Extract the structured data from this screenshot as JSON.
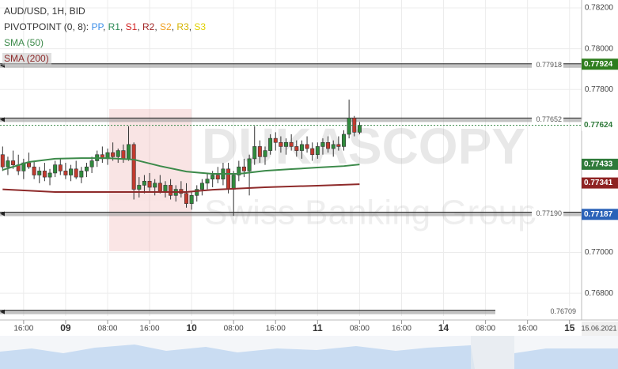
{
  "chart_data": {
    "type": "candlestick",
    "title": "AUD/USD, 1H, BID",
    "pivot_title": "PIVOTPOINT (0, 8):",
    "pivot_items": [
      {
        "name": "PP",
        "color": "#3b8ee8"
      },
      {
        "name": "R1",
        "color": "#2e8b57"
      },
      {
        "name": "S1",
        "color": "#d02020"
      },
      {
        "name": "R2",
        "color": "#a02525"
      },
      {
        "name": "S2",
        "color": "#f0a020"
      },
      {
        "name": "R3",
        "color": "#d4b400"
      },
      {
        "name": "S3",
        "color": "#e0d000"
      }
    ],
    "watermark": [
      "DUKASCOPY",
      "Swiss Banking Group"
    ],
    "ylim": [
      0.76688,
      0.78239
    ],
    "yticks": [
      {
        "value": 0.782,
        "label": "0.78200"
      },
      {
        "value": 0.78,
        "label": "0.78000"
      },
      {
        "value": 0.778,
        "label": "0.77800"
      },
      {
        "value": 0.77,
        "label": "0.77000"
      },
      {
        "value": 0.768,
        "label": "0.76800"
      }
    ],
    "xlim": [
      -0.5,
      110.3
    ],
    "xticks": [
      {
        "value": 4,
        "label": "16:00"
      },
      {
        "value": 12,
        "label": "09"
      },
      {
        "value": 20,
        "label": "08:00"
      },
      {
        "value": 28,
        "label": "16:00"
      },
      {
        "value": 36,
        "label": "10"
      },
      {
        "value": 44,
        "label": "08:00"
      },
      {
        "value": 52,
        "label": "16:00"
      },
      {
        "value": 60,
        "label": "11"
      },
      {
        "value": 68,
        "label": "08:00"
      },
      {
        "value": 76,
        "label": "16:00"
      },
      {
        "value": 84,
        "label": "14"
      },
      {
        "value": 92,
        "label": "08:00"
      },
      {
        "value": 100,
        "label": "16:00"
      },
      {
        "value": 108,
        "label": "15"
      }
    ],
    "date_label": "15.06.2021",
    "grid": true,
    "up_color": "#2f8a3c",
    "down_color": "#c23a2e",
    "ohlc": [
      [
        0.7748,
        0.7752,
        0.774,
        0.7742
      ],
      [
        0.7742,
        0.7747,
        0.7738,
        0.7745
      ],
      [
        0.7745,
        0.775,
        0.7741,
        0.7743
      ],
      [
        0.7743,
        0.7748,
        0.7738,
        0.774
      ],
      [
        0.774,
        0.7746,
        0.7736,
        0.7744
      ],
      [
        0.7744,
        0.7749,
        0.7741,
        0.7742
      ],
      [
        0.7742,
        0.7745,
        0.7736,
        0.7738
      ],
      [
        0.7738,
        0.7742,
        0.7734,
        0.774
      ],
      [
        0.774,
        0.7744,
        0.7735,
        0.7737
      ],
      [
        0.7737,
        0.7741,
        0.7733,
        0.7739
      ],
      [
        0.7739,
        0.7745,
        0.7737,
        0.7743
      ],
      [
        0.7743,
        0.7746,
        0.7738,
        0.774
      ],
      [
        0.774,
        0.7744,
        0.7736,
        0.7738
      ],
      [
        0.7738,
        0.7743,
        0.7735,
        0.7741
      ],
      [
        0.7741,
        0.7745,
        0.7736,
        0.7737
      ],
      [
        0.7737,
        0.7742,
        0.7734,
        0.774
      ],
      [
        0.774,
        0.7744,
        0.7737,
        0.7742
      ],
      [
        0.7742,
        0.7747,
        0.7739,
        0.7745
      ],
      [
        0.7745,
        0.775,
        0.7742,
        0.7748
      ],
      [
        0.7748,
        0.7752,
        0.7744,
        0.7746
      ],
      [
        0.7746,
        0.7751,
        0.7743,
        0.7749
      ],
      [
        0.7749,
        0.7754,
        0.7745,
        0.7747
      ],
      [
        0.7747,
        0.7751,
        0.7744,
        0.775
      ],
      [
        0.775,
        0.7753,
        0.7744,
        0.7746
      ],
      [
        0.7746,
        0.7762,
        0.7745,
        0.7753
      ],
      [
        0.7753,
        0.7754,
        0.7726,
        0.7731
      ],
      [
        0.7731,
        0.7737,
        0.7727,
        0.7733
      ],
      [
        0.7733,
        0.7738,
        0.7729,
        0.7735
      ],
      [
        0.7735,
        0.7739,
        0.773,
        0.7732
      ],
      [
        0.7732,
        0.7736,
        0.7728,
        0.7734
      ],
      [
        0.7734,
        0.7738,
        0.7729,
        0.773
      ],
      [
        0.773,
        0.7735,
        0.7727,
        0.7733
      ],
      [
        0.7733,
        0.7736,
        0.7726,
        0.7728
      ],
      [
        0.7728,
        0.7733,
        0.7725,
        0.7731
      ],
      [
        0.7731,
        0.7735,
        0.7727,
        0.7729
      ],
      [
        0.7729,
        0.7734,
        0.7722,
        0.7724
      ],
      [
        0.7724,
        0.773,
        0.7721,
        0.7728
      ],
      [
        0.7728,
        0.7733,
        0.7725,
        0.7731
      ],
      [
        0.7731,
        0.7736,
        0.7728,
        0.7734
      ],
      [
        0.7734,
        0.7739,
        0.7731,
        0.7736
      ],
      [
        0.7736,
        0.774,
        0.7732,
        0.7738
      ],
      [
        0.7738,
        0.7742,
        0.7734,
        0.7736
      ],
      [
        0.7736,
        0.7744,
        0.7733,
        0.7741
      ],
      [
        0.7741,
        0.7744,
        0.7729,
        0.7731
      ],
      [
        0.7731,
        0.774,
        0.7718,
        0.7738
      ],
      [
        0.7738,
        0.7745,
        0.7735,
        0.7742
      ],
      [
        0.7742,
        0.7746,
        0.7737,
        0.774
      ],
      [
        0.774,
        0.7748,
        0.7728,
        0.7746
      ],
      [
        0.7746,
        0.7762,
        0.7743,
        0.7752
      ],
      [
        0.7752,
        0.7755,
        0.7744,
        0.7747
      ],
      [
        0.7747,
        0.7752,
        0.7743,
        0.775
      ],
      [
        0.775,
        0.7758,
        0.7748,
        0.7756
      ],
      [
        0.7756,
        0.7759,
        0.775,
        0.7754
      ],
      [
        0.7754,
        0.7757,
        0.7749,
        0.7752
      ],
      [
        0.7752,
        0.7756,
        0.7748,
        0.7754
      ],
      [
        0.7754,
        0.7758,
        0.775,
        0.7752
      ],
      [
        0.7752,
        0.7755,
        0.7747,
        0.775
      ],
      [
        0.775,
        0.7755,
        0.7746,
        0.7753
      ],
      [
        0.7753,
        0.7757,
        0.7749,
        0.7751
      ],
      [
        0.7751,
        0.7754,
        0.7745,
        0.7748
      ],
      [
        0.7748,
        0.7754,
        0.7746,
        0.7752
      ],
      [
        0.7752,
        0.7756,
        0.7748,
        0.7754
      ],
      [
        0.7754,
        0.7757,
        0.7749,
        0.7751
      ],
      [
        0.7751,
        0.7755,
        0.7747,
        0.7753
      ],
      [
        0.7753,
        0.7757,
        0.775,
        0.7752
      ],
      [
        0.7752,
        0.776,
        0.775,
        0.7758
      ],
      [
        0.7758,
        0.7775,
        0.7756,
        0.7766
      ],
      [
        0.7766,
        0.7767,
        0.7757,
        0.7759
      ],
      [
        0.7759,
        0.7764,
        0.7758,
        0.77624
      ]
    ],
    "series": [
      {
        "name": "SMA (50)",
        "color": "#3c8a4a",
        "x": [
          0,
          5,
          10,
          15,
          20,
          25,
          30,
          35,
          40,
          45,
          50,
          55,
          60,
          65,
          68
        ],
        "values": [
          0.77405,
          0.77444,
          0.7746,
          0.77463,
          0.77463,
          0.77456,
          0.77424,
          0.77397,
          0.77386,
          0.77386,
          0.77401,
          0.77409,
          0.77417,
          0.77424,
          0.77432
        ]
      },
      {
        "name": "SMA (200)",
        "color": "#8e2a2a",
        "x": [
          0,
          10,
          20,
          30,
          35,
          40,
          50,
          60,
          68
        ],
        "values": [
          0.7731,
          0.77297,
          0.77297,
          0.77297,
          0.77297,
          0.77308,
          0.7732,
          0.77328,
          0.77335
        ]
      }
    ],
    "levels": [
      0.77918,
      0.77652,
      {
        "value": 0.7719,
        "label": "0.77190"
      },
      0.76709
    ],
    "price_labels": [
      {
        "value": 0.77924,
        "color": "#2e7d1e"
      },
      {
        "value": 0.77624,
        "color": "#ffffff"
      },
      {
        "value": 0.77433,
        "color": "#2f7a3a"
      },
      {
        "value": 0.77341,
        "color": "#8e2222"
      },
      {
        "value": 0.77187,
        "color": "#2a62b8"
      }
    ]
  }
}
